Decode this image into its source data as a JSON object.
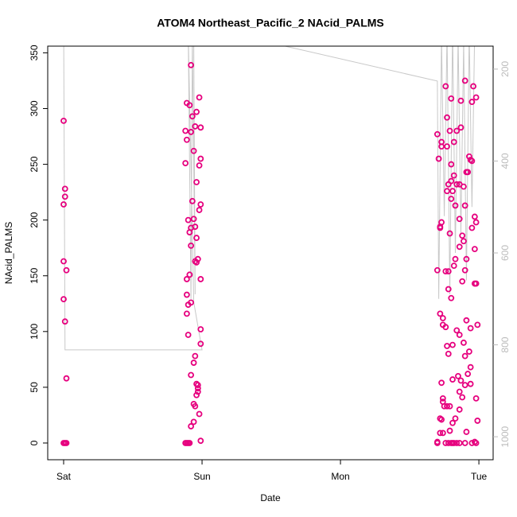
{
  "chart_data": {
    "type": "scatter",
    "title": "ATOM4 Northeast_Pacific_2 NAcid_PALMS",
    "x_label": "Date",
    "y_label": "NAcid_PALMS",
    "xlim": [
      -0.115,
      3.103
    ],
    "xticks": [
      {
        "value": 0,
        "label": "Sat"
      },
      {
        "value": 1,
        "label": "Sun"
      },
      {
        "value": 2,
        "label": "Mon"
      },
      {
        "value": 3,
        "label": "Tue"
      }
    ],
    "ylim": [
      -15,
      356
    ],
    "yticks": [
      0,
      50,
      100,
      150,
      200,
      250,
      300,
      350
    ],
    "y2lim": [
      1050,
      150
    ],
    "y2ticks": [
      200,
      400,
      600,
      800,
      1000
    ],
    "series": [
      {
        "type": "line",
        "axis": "y2",
        "color": "#c8c8c8",
        "x": [
          0,
          0.01,
          1.0,
          0.94,
          0.9,
          0.92,
          0.93,
          0.95,
          0.94,
          1.6,
          2.7,
          2.71,
          2.73,
          2.75,
          2.77,
          2.79,
          2.81,
          2.83,
          2.85,
          2.87,
          2.89,
          2.91,
          2.93,
          2.95,
          2.97,
          2.99
        ],
        "values": [
          100,
          811,
          811,
          707,
          120,
          700,
          130,
          690,
          140,
          150,
          226,
          700,
          130,
          520,
          120,
          690,
          110,
          600,
          130,
          560,
          140,
          660,
          120,
          500,
          110,
          130
        ]
      },
      {
        "type": "scatter",
        "color": "#e6007e",
        "x": [
          0,
          0.01,
          0.01,
          0,
          0,
          0.02,
          0,
          0.01,
          0.02,
          0,
          0.01,
          0.02,
          0.92,
          0.89,
          0.91,
          0.96,
          0.93,
          0.98,
          0.95,
          0.99,
          0.88,
          0.92,
          0.89,
          0.94,
          0.99,
          0.88,
          0.98,
          0.96,
          0.93,
          0.99,
          0.98,
          0.94,
          0.9,
          0.95,
          0.92,
          0.91,
          0.96,
          0.92,
          0.97,
          0.95,
          0.96,
          0.91,
          0.89,
          0.99,
          0.89,
          0.92,
          0.9,
          0.89,
          0.99,
          0.9,
          0.99,
          0.95,
          0.94,
          0.92,
          0.96,
          0.97,
          0.97,
          0.97,
          0.96,
          0.94,
          0.95,
          0.98,
          0.94,
          0.92,
          0.99,
          0.88,
          0.89,
          0.9,
          0.91,
          2.9,
          2.76,
          2.96,
          2.98,
          2.8,
          2.95,
          2.87,
          2.77,
          2.73,
          2.7,
          2.79,
          2.84,
          2.87,
          2.73,
          2.82,
          2.77,
          2.71,
          2.93,
          2.94,
          2.95,
          2.8,
          2.91,
          2.92,
          2.82,
          2.8,
          2.78,
          2.84,
          2.86,
          2.89,
          2.81,
          2.77,
          2.9,
          2.83,
          2.8,
          2.97,
          2.98,
          2.86,
          2.73,
          2.72,
          2.72,
          2.88,
          2.79,
          2.89,
          2.95,
          2.86,
          2.97,
          2.83,
          2.91,
          2.82,
          2.76,
          2.78,
          2.7,
          2.9,
          2.97,
          2.98,
          2.88,
          2.78,
          2.8,
          2.72,
          2.74,
          2.74,
          2.76,
          2.99,
          2.84,
          2.91,
          2.86,
          2.94,
          2.77,
          2.81,
          2.89,
          2.93,
          2.78,
          2.9,
          2.94,
          2.92,
          2.85,
          2.87,
          2.81,
          2.73,
          2.9,
          2.86,
          2.94,
          2.88,
          2.98,
          2.74,
          2.74,
          2.75,
          2.77,
          2.79,
          2.86,
          2.72,
          2.73,
          2.83,
          2.81,
          2.99,
          2.72,
          2.74,
          2.79,
          2.91,
          2.7,
          2.7,
          2.76,
          2.78,
          2.8,
          2.81,
          2.82,
          2.86,
          2.9,
          2.95,
          2.97,
          2.98,
          2.84
        ],
        "values": [
          289,
          228,
          221,
          214,
          163,
          155,
          129,
          109,
          58,
          0,
          0,
          0,
          339,
          305,
          303,
          297,
          293,
          310,
          284,
          283,
          280,
          279,
          272,
          262,
          255,
          251,
          249,
          234,
          217,
          214,
          209,
          201,
          200,
          194,
          193,
          189,
          184,
          177,
          165,
          163,
          162,
          151,
          147,
          147,
          133,
          126,
          124,
          116,
          102,
          97,
          89,
          78,
          72,
          61,
          53,
          52,
          49,
          46,
          43,
          35,
          33,
          26,
          19,
          15,
          2,
          0,
          0,
          0,
          0,
          325,
          320,
          320,
          310,
          309,
          306,
          307,
          292,
          270,
          277,
          280,
          280,
          283,
          266,
          270,
          266,
          255,
          257,
          254,
          253,
          250,
          243,
          243,
          240,
          235,
          232,
          232,
          232,
          230,
          226,
          226,
          213,
          213,
          219,
          203,
          198,
          201,
          198,
          194,
          193,
          186,
          188,
          181,
          193,
          176,
          174,
          165,
          165,
          159,
          154,
          154,
          155,
          155,
          143,
          143,
          145,
          138,
          130,
          116,
          112,
          106,
          104,
          106,
          101,
          110,
          97,
          103,
          87,
          88,
          90,
          82,
          80,
          78,
          68,
          62,
          60,
          56,
          57,
          54,
          52,
          46,
          53,
          41,
          40,
          40,
          37,
          33,
          33,
          33,
          30,
          22,
          21,
          22,
          18,
          20,
          9,
          9,
          11,
          10,
          0,
          1,
          0,
          0,
          0,
          0,
          0,
          0,
          0,
          0,
          1,
          0,
          0
        ]
      }
    ]
  }
}
